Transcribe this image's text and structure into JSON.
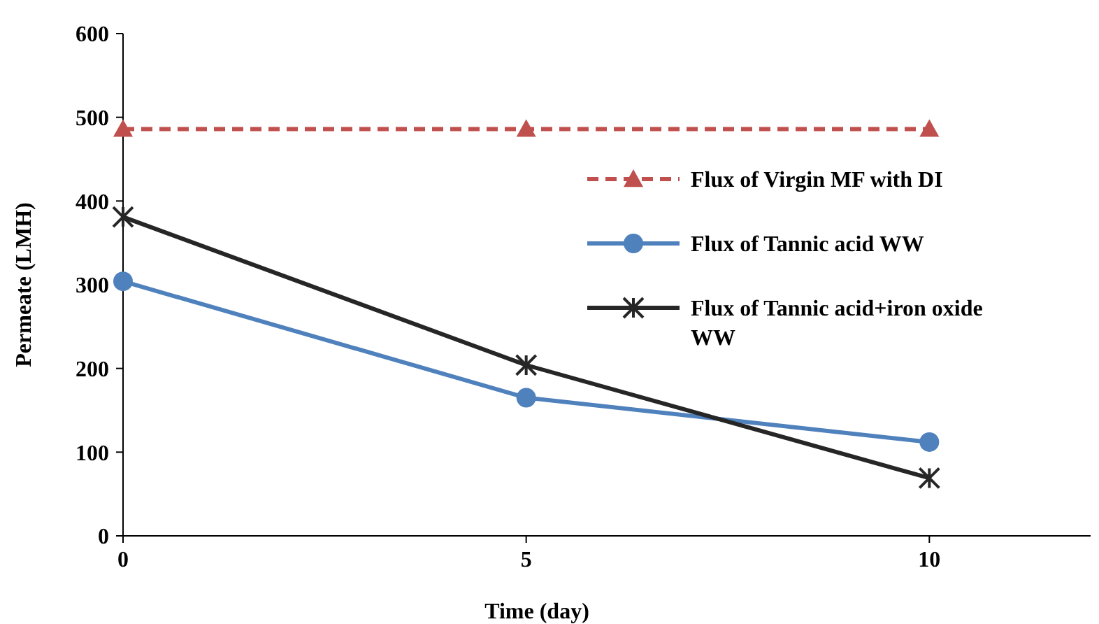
{
  "chart_data": {
    "type": "line",
    "xlabel": "Time (day)",
    "ylabel": "Permeate (LMH)",
    "x": [
      0,
      5,
      10
    ],
    "xlim": [
      0,
      12
    ],
    "xticks": [
      0,
      5,
      10
    ],
    "ylim": [
      0,
      600
    ],
    "yticks": [
      0,
      100,
      200,
      300,
      400,
      500,
      600
    ],
    "grid": false,
    "legend": "right",
    "series": [
      {
        "name": "Flux of Virgin MF with DI",
        "color": "#c0504d",
        "values": [
          486,
          486,
          486
        ],
        "marker": "triangle",
        "line_style": "dashed"
      },
      {
        "name": "Flux of Tannic acid WW",
        "color": "#4f81bd",
        "values": [
          304,
          165,
          112
        ],
        "marker": "circle",
        "line_style": "solid"
      },
      {
        "name": "Flux of Tannic acid+iron oxide WW",
        "color": "#262626",
        "values": [
          381,
          204,
          69
        ],
        "marker": "cross",
        "line_style": "solid"
      }
    ]
  }
}
